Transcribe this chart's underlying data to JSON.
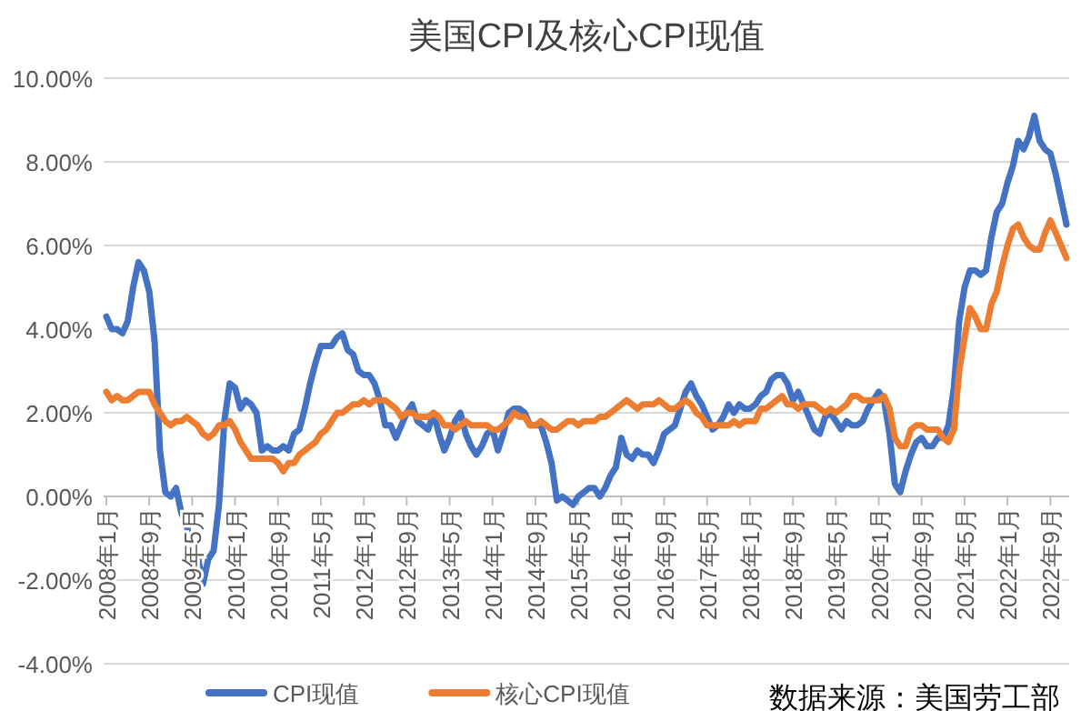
{
  "chart_data": {
    "type": "line",
    "title": "美国CPI及核心CPI现值",
    "categories": [
      "2008年1月",
      null,
      null,
      null,
      null,
      null,
      null,
      null,
      "2008年9月",
      null,
      null,
      null,
      null,
      null,
      null,
      null,
      "2009年5月",
      null,
      null,
      null,
      null,
      null,
      null,
      null,
      "2010年1月",
      null,
      null,
      null,
      null,
      null,
      null,
      null,
      "2010年9月",
      null,
      null,
      null,
      null,
      null,
      null,
      null,
      "2011年5月",
      null,
      null,
      null,
      null,
      null,
      null,
      null,
      "2012年1月",
      null,
      null,
      null,
      null,
      null,
      null,
      null,
      "2012年9月",
      null,
      null,
      null,
      null,
      null,
      null,
      null,
      "2013年5月",
      null,
      null,
      null,
      null,
      null,
      null,
      null,
      "2014年1月",
      null,
      null,
      null,
      null,
      null,
      null,
      null,
      "2014年9月",
      null,
      null,
      null,
      null,
      null,
      null,
      null,
      "2015年5月",
      null,
      null,
      null,
      null,
      null,
      null,
      null,
      "2016年1月",
      null,
      null,
      null,
      null,
      null,
      null,
      null,
      "2016年9月",
      null,
      null,
      null,
      null,
      null,
      null,
      null,
      "2017年5月",
      null,
      null,
      null,
      null,
      null,
      null,
      null,
      "2018年1月",
      null,
      null,
      null,
      null,
      null,
      null,
      null,
      "2018年9月",
      null,
      null,
      null,
      null,
      null,
      null,
      null,
      "2019年5月",
      null,
      null,
      null,
      null,
      null,
      null,
      null,
      "2020年1月",
      null,
      null,
      null,
      null,
      null,
      null,
      null,
      "2020年9月",
      null,
      null,
      null,
      null,
      null,
      null,
      null,
      "2021年5月",
      null,
      null,
      null,
      null,
      null,
      null,
      null,
      "2022年1月",
      null,
      null,
      null,
      null,
      null,
      null,
      null,
      "2022年9月",
      null,
      null,
      null
    ],
    "series": [
      {
        "name": "CPI现值",
        "color": "#4472c4",
        "values": [
          4.3,
          4.0,
          4.0,
          3.9,
          4.2,
          5.0,
          5.6,
          5.4,
          4.9,
          3.7,
          1.1,
          0.1,
          0.0,
          0.2,
          -0.4,
          -0.7,
          -1.3,
          -1.4,
          -2.1,
          -1.5,
          -1.3,
          -0.2,
          1.8,
          2.7,
          2.6,
          2.1,
          2.3,
          2.2,
          2.0,
          1.1,
          1.2,
          1.1,
          1.1,
          1.2,
          1.1,
          1.5,
          1.6,
          2.1,
          2.7,
          3.2,
          3.6,
          3.6,
          3.6,
          3.8,
          3.9,
          3.5,
          3.4,
          3.0,
          2.9,
          2.9,
          2.7,
          2.3,
          1.7,
          1.7,
          1.4,
          1.7,
          2.0,
          2.2,
          1.8,
          1.7,
          1.6,
          2.0,
          1.5,
          1.1,
          1.4,
          1.8,
          2.0,
          1.5,
          1.2,
          1.0,
          1.2,
          1.5,
          1.6,
          1.1,
          1.5,
          2.0,
          2.1,
          2.1,
          2.0,
          1.7,
          1.7,
          1.7,
          1.3,
          0.8,
          -0.1,
          0.0,
          -0.1,
          -0.2,
          0.0,
          0.1,
          0.2,
          0.2,
          0.0,
          0.2,
          0.5,
          0.7,
          1.4,
          1.0,
          0.9,
          1.1,
          1.0,
          1.0,
          0.8,
          1.1,
          1.5,
          1.6,
          1.7,
          2.1,
          2.5,
          2.7,
          2.4,
          2.2,
          1.9,
          1.6,
          1.7,
          1.9,
          2.2,
          2.0,
          2.2,
          2.1,
          2.1,
          2.2,
          2.4,
          2.5,
          2.8,
          2.9,
          2.9,
          2.7,
          2.3,
          2.5,
          2.2,
          1.9,
          1.6,
          1.5,
          1.9,
          2.0,
          1.8,
          1.6,
          1.8,
          1.7,
          1.7,
          1.8,
          2.1,
          2.3,
          2.5,
          2.3,
          1.5,
          0.3,
          0.1,
          0.6,
          1.0,
          1.3,
          1.4,
          1.2,
          1.2,
          1.4,
          1.4,
          1.7,
          2.6,
          4.2,
          5.0,
          5.4,
          5.4,
          5.3,
          5.4,
          6.2,
          6.8,
          7.0,
          7.5,
          7.9,
          8.5,
          8.3,
          8.6,
          9.1,
          8.5,
          8.3,
          8.2,
          7.7,
          7.1,
          6.5
        ]
      },
      {
        "name": "核心CPI现值",
        "color": "#ed7d31",
        "values": [
          2.5,
          2.3,
          2.4,
          2.3,
          2.3,
          2.4,
          2.5,
          2.5,
          2.5,
          2.2,
          2.0,
          1.8,
          1.7,
          1.8,
          1.8,
          1.9,
          1.8,
          1.7,
          1.5,
          1.4,
          1.5,
          1.7,
          1.7,
          1.8,
          1.6,
          1.3,
          1.1,
          0.9,
          0.9,
          0.9,
          0.9,
          0.9,
          0.8,
          0.6,
          0.8,
          0.8,
          1.0,
          1.1,
          1.2,
          1.3,
          1.5,
          1.6,
          1.8,
          2.0,
          2.0,
          2.1,
          2.2,
          2.2,
          2.3,
          2.2,
          2.3,
          2.3,
          2.3,
          2.2,
          2.1,
          1.9,
          2.0,
          2.0,
          1.9,
          1.9,
          1.9,
          2.0,
          1.9,
          1.7,
          1.7,
          1.6,
          1.7,
          1.8,
          1.7,
          1.7,
          1.7,
          1.7,
          1.6,
          1.6,
          1.7,
          1.8,
          2.0,
          1.9,
          1.9,
          1.7,
          1.7,
          1.8,
          1.7,
          1.6,
          1.6,
          1.7,
          1.8,
          1.8,
          1.7,
          1.8,
          1.8,
          1.8,
          1.9,
          1.9,
          2.0,
          2.1,
          2.2,
          2.3,
          2.2,
          2.1,
          2.2,
          2.2,
          2.2,
          2.3,
          2.2,
          2.1,
          2.1,
          2.2,
          2.3,
          2.2,
          2.0,
          1.9,
          1.7,
          1.7,
          1.7,
          1.7,
          1.7,
          1.8,
          1.7,
          1.8,
          1.8,
          1.8,
          2.1,
          2.1,
          2.2,
          2.3,
          2.4,
          2.2,
          2.2,
          2.1,
          2.2,
          2.2,
          2.2,
          2.1,
          2.0,
          2.1,
          2.0,
          2.1,
          2.2,
          2.4,
          2.4,
          2.3,
          2.3,
          2.3,
          2.3,
          2.4,
          2.1,
          1.4,
          1.2,
          1.2,
          1.6,
          1.7,
          1.7,
          1.6,
          1.6,
          1.6,
          1.4,
          1.3,
          1.6,
          3.0,
          3.8,
          4.5,
          4.3,
          4.0,
          4.0,
          4.6,
          4.9,
          5.5,
          6.0,
          6.4,
          6.5,
          6.2,
          6.0,
          5.9,
          5.9,
          6.3,
          6.6,
          6.3,
          6.0,
          5.7
        ]
      }
    ],
    "ylim": [
      -4,
      10
    ],
    "yticks": [
      {
        "value": -4,
        "label": "-4.00%"
      },
      {
        "value": -2,
        "label": "-2.00%"
      },
      {
        "value": 0,
        "label": "0.00%"
      },
      {
        "value": 2,
        "label": "2.00%"
      },
      {
        "value": 4,
        "label": "4.00%"
      },
      {
        "value": 6,
        "label": "6.00%"
      },
      {
        "value": 8,
        "label": "8.00%"
      },
      {
        "value": 10,
        "label": "10.00%"
      }
    ],
    "grid": "y",
    "legend": "bottom",
    "annotations": [
      "数据来源：美国劳工部"
    ]
  }
}
